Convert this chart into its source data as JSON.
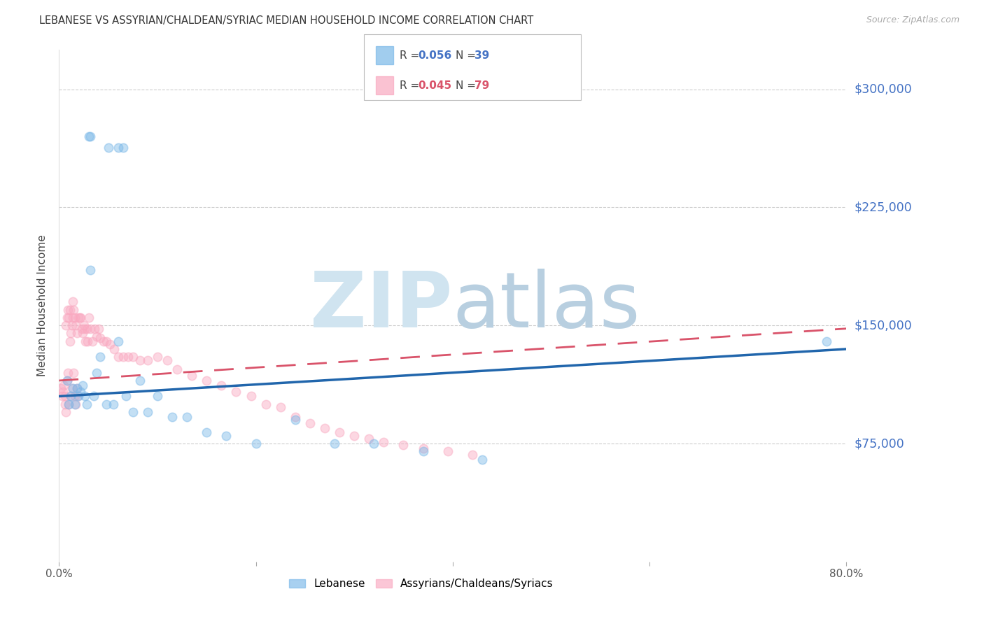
{
  "title": "LEBANESE VS ASSYRIAN/CHALDEAN/SYRIAC MEDIAN HOUSEHOLD INCOME CORRELATION CHART",
  "source": "Source: ZipAtlas.com",
  "ylabel": "Median Household Income",
  "ytick_labels": [
    "$75,000",
    "$150,000",
    "$225,000",
    "$300,000"
  ],
  "ytick_values": [
    75000,
    150000,
    225000,
    300000
  ],
  "ylim": [
    0,
    325000
  ],
  "xlim": [
    0.0,
    0.8
  ],
  "xtick_values": [
    0.0,
    0.2,
    0.4,
    0.6,
    0.8
  ],
  "xtick_labels": [
    "0.0%",
    "",
    "",
    "",
    "80.0%"
  ],
  "background_color": "#ffffff",
  "grid_color": "#cccccc",
  "scatter_blue_color": "#7ab8e8",
  "scatter_pink_color": "#f9a8c0",
  "line_blue_color": "#2166ac",
  "line_pink_color": "#d9536a",
  "title_color": "#333333",
  "ylabel_color": "#444444",
  "ytick_color": "#4472c4",
  "source_color": "#aaaaaa",
  "watermark_zip_color": "#d0e4f0",
  "watermark_atlas_color": "#b8cfe0",
  "scatter_size": 80,
  "scatter_alpha": 0.45,
  "lebanese_R": "0.056",
  "lebanese_N": "39",
  "assyrian_R": "0.045",
  "assyrian_N": "79",
  "lebanese_x": [
    0.03,
    0.032,
    0.05,
    0.06,
    0.065,
    0.008,
    0.01,
    0.012,
    0.014,
    0.016,
    0.018,
    0.02,
    0.022,
    0.024,
    0.026,
    0.028,
    0.032,
    0.035,
    0.038,
    0.042,
    0.048,
    0.055,
    0.06,
    0.068,
    0.075,
    0.082,
    0.09,
    0.1,
    0.115,
    0.13,
    0.15,
    0.17,
    0.2,
    0.24,
    0.28,
    0.32,
    0.37,
    0.43,
    0.78
  ],
  "lebanese_y": [
    270000,
    270000,
    263000,
    263000,
    263000,
    115000,
    100000,
    105000,
    110000,
    100000,
    110000,
    105000,
    108000,
    112000,
    105000,
    100000,
    185000,
    105000,
    120000,
    130000,
    100000,
    100000,
    140000,
    105000,
    95000,
    115000,
    95000,
    105000,
    92000,
    92000,
    82000,
    80000,
    75000,
    90000,
    75000,
    75000,
    70000,
    65000,
    140000
  ],
  "assyrian_x": [
    0.002,
    0.003,
    0.004,
    0.005,
    0.006,
    0.006,
    0.007,
    0.007,
    0.008,
    0.008,
    0.009,
    0.009,
    0.01,
    0.01,
    0.011,
    0.011,
    0.012,
    0.012,
    0.013,
    0.013,
    0.014,
    0.014,
    0.015,
    0.015,
    0.016,
    0.016,
    0.017,
    0.017,
    0.018,
    0.018,
    0.019,
    0.02,
    0.021,
    0.022,
    0.023,
    0.024,
    0.025,
    0.026,
    0.027,
    0.028,
    0.029,
    0.03,
    0.032,
    0.034,
    0.036,
    0.038,
    0.04,
    0.042,
    0.045,
    0.048,
    0.052,
    0.056,
    0.06,
    0.065,
    0.07,
    0.075,
    0.082,
    0.09,
    0.1,
    0.11,
    0.12,
    0.135,
    0.15,
    0.165,
    0.18,
    0.195,
    0.21,
    0.225,
    0.24,
    0.255,
    0.27,
    0.285,
    0.3,
    0.315,
    0.33,
    0.35,
    0.37,
    0.395,
    0.42
  ],
  "assyrian_y": [
    110000,
    105000,
    108000,
    112000,
    100000,
    105000,
    150000,
    95000,
    155000,
    115000,
    160000,
    120000,
    155000,
    100000,
    160000,
    140000,
    145000,
    105000,
    150000,
    110000,
    165000,
    155000,
    160000,
    120000,
    155000,
    105000,
    150000,
    100000,
    145000,
    110000,
    105000,
    155000,
    155000,
    155000,
    148000,
    145000,
    150000,
    148000,
    140000,
    148000,
    140000,
    155000,
    148000,
    140000,
    148000,
    143000,
    148000,
    142000,
    140000,
    140000,
    138000,
    135000,
    130000,
    130000,
    130000,
    130000,
    128000,
    128000,
    130000,
    128000,
    122000,
    118000,
    115000,
    112000,
    108000,
    105000,
    100000,
    98000,
    92000,
    88000,
    85000,
    82000,
    80000,
    78000,
    76000,
    74000,
    72000,
    70000,
    68000
  ]
}
